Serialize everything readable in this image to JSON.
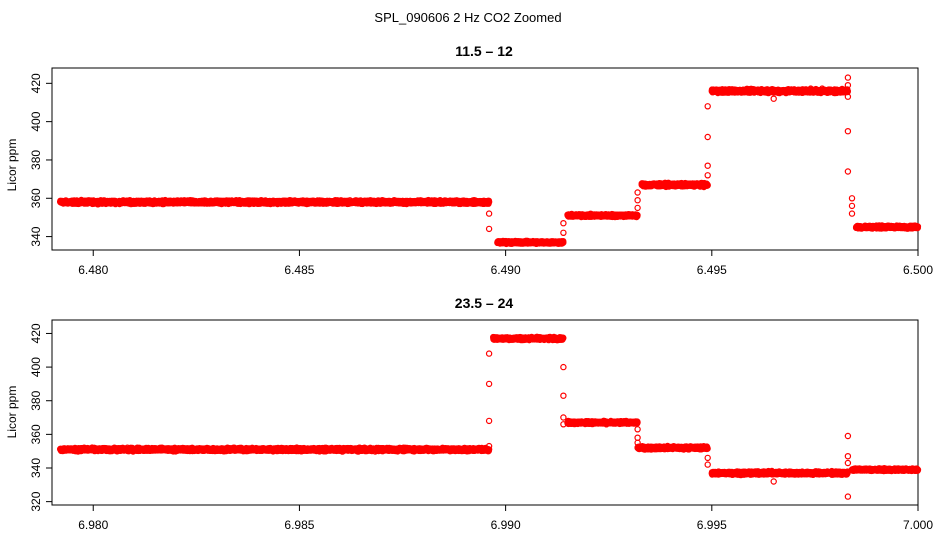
{
  "title": "SPL_090606  2 Hz CO2 Zoomed",
  "chart_data": [
    {
      "type": "scatter",
      "title": "11.5 – 12",
      "xlabel": "",
      "ylabel": "Licor ppm",
      "xlim": [
        6.479,
        6.5
      ],
      "ylim": [
        333,
        428
      ],
      "xticks": [
        6.48,
        6.485,
        6.49,
        6.495,
        6.5
      ],
      "xtick_labels": [
        "6.480",
        "6.485",
        "6.490",
        "6.495",
        "6.500"
      ],
      "yticks": [
        340,
        360,
        380,
        400,
        420
      ],
      "ytick_labels": [
        "340",
        "360",
        "380",
        "400",
        "420"
      ],
      "marker": "open-circle",
      "color": "#ff0000",
      "segments": [
        {
          "x0": 6.4792,
          "x1": 6.4896,
          "y": 358,
          "noise": 1.2
        },
        {
          "x0": 6.4898,
          "x1": 6.4914,
          "y": 337,
          "noise": 1.0
        },
        {
          "x0": 6.4915,
          "x1": 6.4932,
          "y": 351,
          "noise": 1.0
        },
        {
          "x0": 6.4933,
          "x1": 6.4949,
          "y": 367,
          "noise": 1.2
        },
        {
          "x0": 6.495,
          "x1": 6.4983,
          "y": 416,
          "noise": 1.3
        },
        {
          "x0": 6.4985,
          "x1": 6.5,
          "y": 345,
          "noise": 1.0
        }
      ],
      "transitions": [
        {
          "x": 6.4896,
          "y": 352
        },
        {
          "x": 6.4896,
          "y": 344
        },
        {
          "x": 6.4914,
          "y": 342
        },
        {
          "x": 6.4914,
          "y": 347
        },
        {
          "x": 6.4932,
          "y": 355
        },
        {
          "x": 6.4932,
          "y": 359
        },
        {
          "x": 6.4932,
          "y": 363
        },
        {
          "x": 6.4949,
          "y": 372
        },
        {
          "x": 6.4949,
          "y": 377
        },
        {
          "x": 6.4949,
          "y": 392
        },
        {
          "x": 6.4949,
          "y": 408
        },
        {
          "x": 6.4983,
          "y": 423
        },
        {
          "x": 6.4983,
          "y": 419
        },
        {
          "x": 6.4983,
          "y": 413
        },
        {
          "x": 6.4983,
          "y": 395
        },
        {
          "x": 6.4983,
          "y": 374
        },
        {
          "x": 6.4984,
          "y": 360
        },
        {
          "x": 6.4984,
          "y": 356
        },
        {
          "x": 6.4984,
          "y": 352
        },
        {
          "x": 6.4965,
          "y": 412
        }
      ]
    },
    {
      "type": "scatter",
      "title": "23.5 – 24",
      "xlabel": "",
      "ylabel": "Licor ppm",
      "xlim": [
        6.979,
        7.0
      ],
      "ylim": [
        318,
        428
      ],
      "xticks": [
        6.98,
        6.985,
        6.99,
        6.995,
        7.0
      ],
      "xtick_labels": [
        "6.980",
        "6.985",
        "6.990",
        "6.995",
        "7.000"
      ],
      "yticks": [
        320,
        340,
        360,
        380,
        400,
        420
      ],
      "ytick_labels": [
        "320",
        "340",
        "360",
        "380",
        "400",
        "420"
      ],
      "marker": "open-circle",
      "color": "#ff0000",
      "segments": [
        {
          "x0": 6.9792,
          "x1": 6.9896,
          "y": 351,
          "noise": 1.3
        },
        {
          "x0": 6.9897,
          "x1": 6.9914,
          "y": 417,
          "noise": 1.2
        },
        {
          "x0": 6.9915,
          "x1": 6.9932,
          "y": 367,
          "noise": 1.1
        },
        {
          "x0": 6.9932,
          "x1": 6.9949,
          "y": 352,
          "noise": 1.2
        },
        {
          "x0": 6.995,
          "x1": 6.9983,
          "y": 337,
          "noise": 1.3
        },
        {
          "x0": 6.9984,
          "x1": 7.0,
          "y": 339,
          "noise": 1.0
        }
      ],
      "transitions": [
        {
          "x": 6.9896,
          "y": 353
        },
        {
          "x": 6.9896,
          "y": 368
        },
        {
          "x": 6.9896,
          "y": 390
        },
        {
          "x": 6.9896,
          "y": 408
        },
        {
          "x": 6.9914,
          "y": 400
        },
        {
          "x": 6.9914,
          "y": 383
        },
        {
          "x": 6.9914,
          "y": 370
        },
        {
          "x": 6.9914,
          "y": 366
        },
        {
          "x": 6.9932,
          "y": 363
        },
        {
          "x": 6.9932,
          "y": 358
        },
        {
          "x": 6.9932,
          "y": 355
        },
        {
          "x": 6.9949,
          "y": 346
        },
        {
          "x": 6.9949,
          "y": 342
        },
        {
          "x": 6.9983,
          "y": 359
        },
        {
          "x": 6.9983,
          "y": 347
        },
        {
          "x": 6.9983,
          "y": 343
        },
        {
          "x": 6.9983,
          "y": 323
        },
        {
          "x": 6.9965,
          "y": 332
        }
      ]
    }
  ]
}
